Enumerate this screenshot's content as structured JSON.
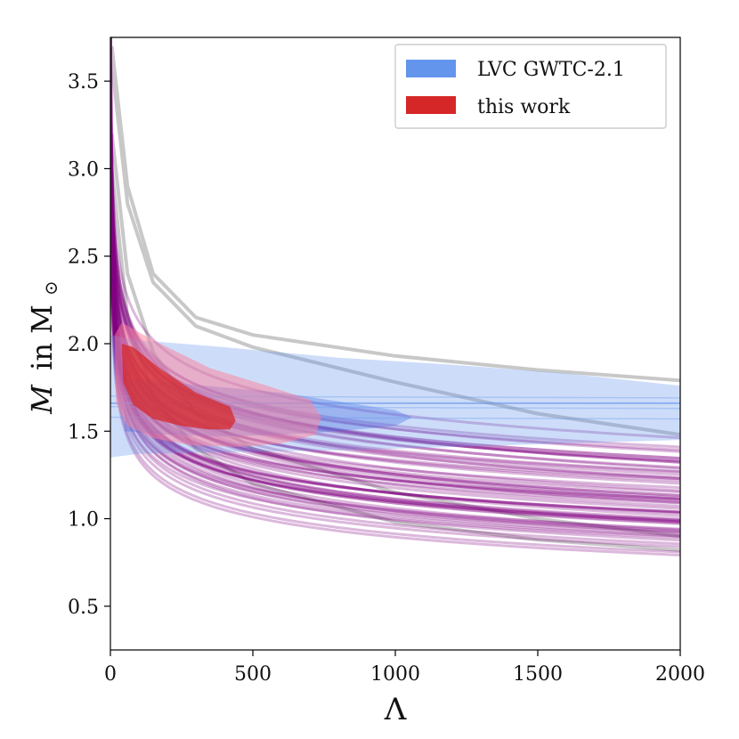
{
  "chart_data": {
    "type": "line",
    "title": "",
    "xlabel": "Λ",
    "ylabel_main": "M",
    "ylabel_rest": "in M",
    "ylabel_sub": "⊙",
    "xlim": [
      0,
      2000
    ],
    "ylim": [
      0.25,
      3.75
    ],
    "xticks": [
      0,
      500,
      1000,
      1500,
      2000
    ],
    "xtick_labels": [
      "0",
      "500",
      "1000",
      "1500",
      "2000"
    ],
    "yticks": [
      0.5,
      1.0,
      1.5,
      2.0,
      2.5,
      3.0,
      3.5
    ],
    "ytick_labels": [
      "0.5",
      "1.0",
      "1.5",
      "2.0",
      "2.5",
      "3.0",
      "3.5"
    ],
    "grid": false,
    "legend_position": "top-right",
    "legend": [
      {
        "name": "LVC GWTC-2.1",
        "color": "#6495ed"
      },
      {
        "name": "this work",
        "color": "#d62728"
      }
    ],
    "eos_band": {
      "color": "#800080",
      "count": 60,
      "A_range": [
        2.95,
        3.9
      ],
      "p_range": [
        0.118,
        0.178
      ]
    },
    "gray_curves": [
      {
        "values": [
          [
            5,
            3.7
          ],
          [
            60,
            2.9
          ],
          [
            150,
            2.4
          ],
          [
            300,
            2.15
          ],
          [
            500,
            2.05
          ],
          [
            1000,
            1.93
          ],
          [
            1500,
            1.85
          ],
          [
            2000,
            1.79
          ]
        ]
      },
      {
        "values": [
          [
            5,
            3.6
          ],
          [
            60,
            2.8
          ],
          [
            150,
            2.35
          ],
          [
            300,
            2.1
          ],
          [
            500,
            1.98
          ],
          [
            1000,
            1.78
          ],
          [
            1500,
            1.6
          ],
          [
            2000,
            1.48
          ]
        ]
      },
      {
        "values": [
          [
            5,
            3.2
          ],
          [
            60,
            2.4
          ],
          [
            150,
            1.95
          ],
          [
            300,
            1.6
          ],
          [
            500,
            1.4
          ],
          [
            1000,
            1.15
          ],
          [
            1500,
            1.0
          ],
          [
            2000,
            0.9
          ]
        ]
      },
      {
        "values": [
          [
            5,
            3.0
          ],
          [
            60,
            2.15
          ],
          [
            150,
            1.7
          ],
          [
            300,
            1.4
          ],
          [
            500,
            1.2
          ],
          [
            1000,
            0.98
          ],
          [
            1500,
            0.88
          ],
          [
            2000,
            0.82
          ]
        ]
      }
    ],
    "lvc_region": {
      "outer": [
        [
          0,
          1.35
        ],
        [
          100,
          1.37
        ],
        [
          400,
          1.38
        ],
        [
          800,
          1.39
        ],
        [
          1200,
          1.41
        ],
        [
          1600,
          1.43
        ],
        [
          2000,
          1.45
        ],
        [
          2000,
          1.76
        ],
        [
          1600,
          1.83
        ],
        [
          1200,
          1.88
        ],
        [
          800,
          1.92
        ],
        [
          400,
          1.98
        ],
        [
          100,
          2.02
        ],
        [
          0,
          2.05
        ]
      ],
      "inner": [
        [
          50,
          1.5
        ],
        [
          200,
          1.48
        ],
        [
          400,
          1.47
        ],
        [
          600,
          1.48
        ],
        [
          800,
          1.5
        ],
        [
          1000,
          1.53
        ],
        [
          1060,
          1.58
        ],
        [
          1000,
          1.62
        ],
        [
          800,
          1.67
        ],
        [
          600,
          1.72
        ],
        [
          400,
          1.75
        ],
        [
          200,
          1.78
        ],
        [
          50,
          1.8
        ]
      ],
      "median": 1.66,
      "sample_lines": [
        1.64,
        1.7,
        1.58
      ]
    },
    "this_work_region": {
      "outer": [
        [
          15,
          2.05
        ],
        [
          40,
          2.12
        ],
        [
          150,
          2.02
        ],
        [
          350,
          1.86
        ],
        [
          550,
          1.76
        ],
        [
          700,
          1.68
        ],
        [
          740,
          1.58
        ],
        [
          720,
          1.48
        ],
        [
          600,
          1.43
        ],
        [
          450,
          1.41
        ],
        [
          280,
          1.42
        ],
        [
          150,
          1.46
        ],
        [
          60,
          1.53
        ],
        [
          20,
          1.66
        ]
      ],
      "inner": [
        [
          40,
          2.0
        ],
        [
          80,
          1.98
        ],
        [
          180,
          1.85
        ],
        [
          300,
          1.72
        ],
        [
          420,
          1.64
        ],
        [
          440,
          1.56
        ],
        [
          420,
          1.51
        ],
        [
          340,
          1.51
        ],
        [
          250,
          1.53
        ],
        [
          150,
          1.57
        ],
        [
          80,
          1.65
        ],
        [
          45,
          1.78
        ]
      ]
    }
  }
}
